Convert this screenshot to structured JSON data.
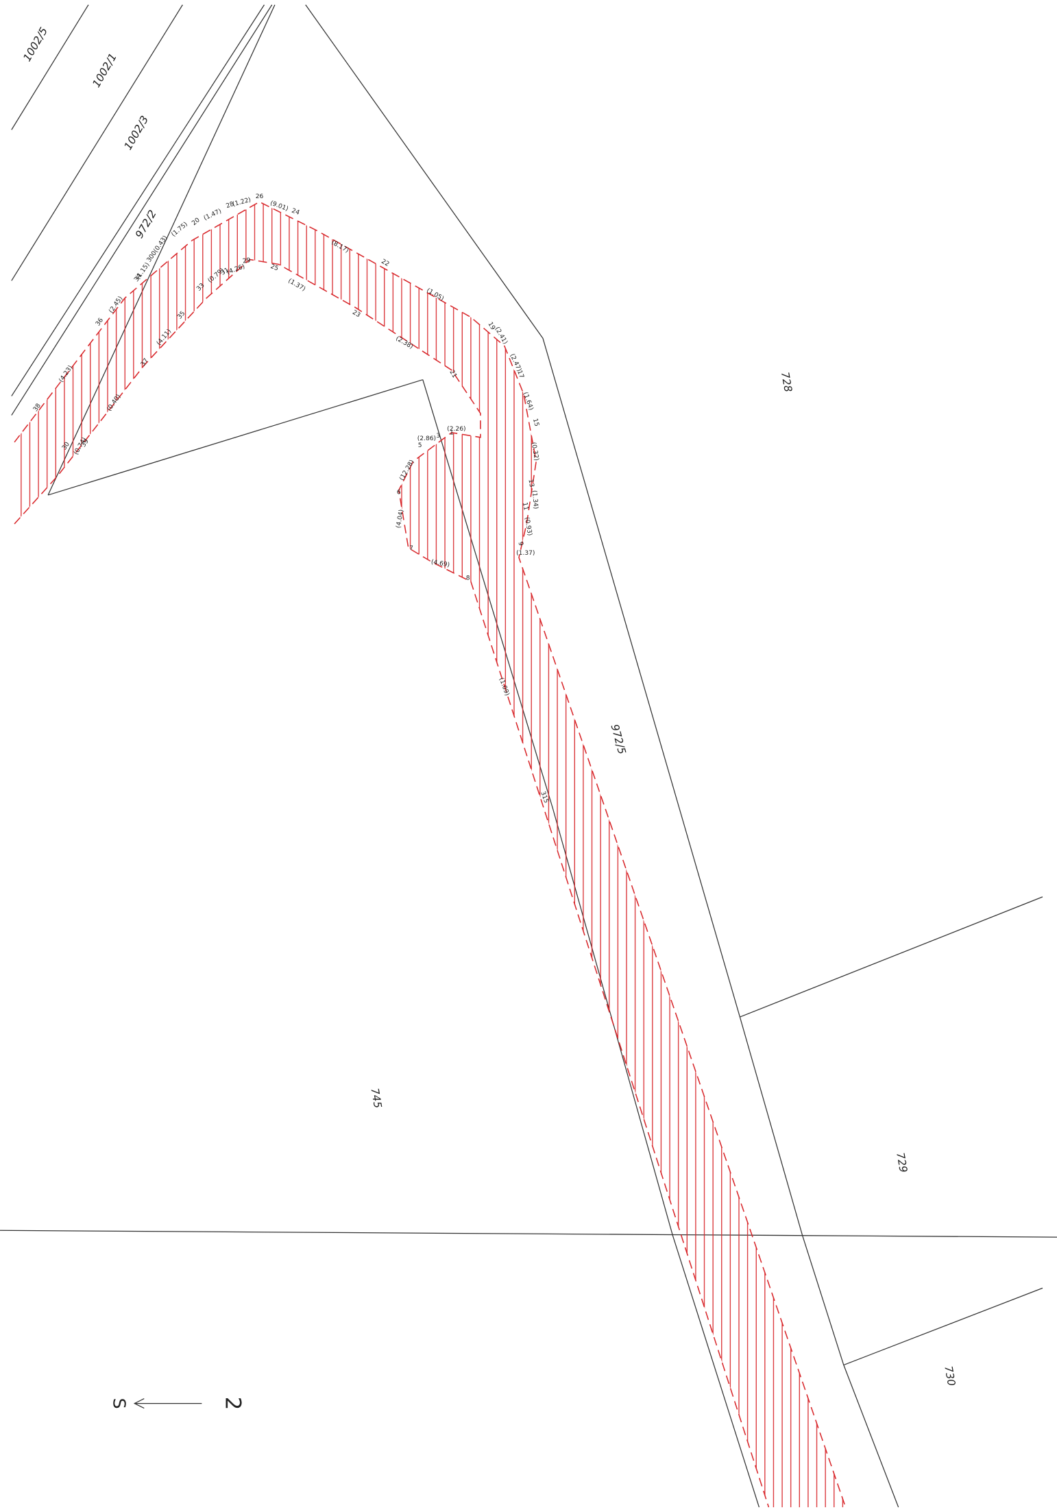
{
  "parcels": [
    "1002/5",
    "1002/1",
    "1002/3",
    "972/2",
    "728",
    "972/5",
    "745",
    "729",
    "730"
  ],
  "north_arrow": {
    "left": "S",
    "right": "2"
  },
  "measurements": [
    "(4.23)",
    "(2.45)",
    "(1.15)",
    "300(0.43)",
    "(1.75)",
    "(1.47)",
    "(1.22)",
    "(9.01)",
    "(8.17)",
    "(1.05)",
    "(2.41)",
    "(2.47)",
    "(1.64)",
    "(0.32)",
    "(1.34)",
    "(0.93)",
    "(1.37)",
    "(2.26)",
    "(2.86)",
    "(12.28)",
    "(4.04)",
    "(4.69)",
    "(1.09)",
    "(1.37)",
    "(2.38)",
    "(4.26)",
    "(0.79)",
    "(4.11)",
    "(0.40)",
    "(0.74)"
  ],
  "points": [
    "38",
    "36",
    "34",
    "20",
    "28",
    "26",
    "24",
    "22",
    "23",
    "37",
    "35",
    "33",
    "31",
    "29",
    "25",
    "21",
    "19",
    "17",
    "15",
    "13",
    "11",
    "9",
    "8",
    "7",
    "6",
    "5",
    "3",
    "1",
    "315",
    "30",
    "39"
  ]
}
